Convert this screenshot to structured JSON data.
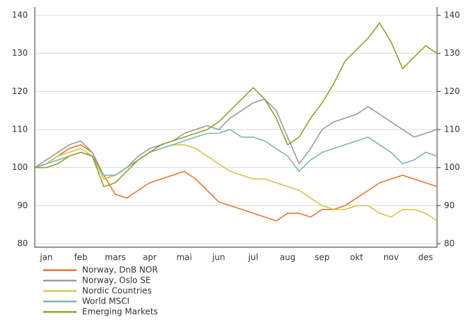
{
  "chart_data": {
    "type": "line",
    "categories": [
      null,
      "jan",
      null,
      null,
      "feb",
      null,
      null,
      "mars",
      null,
      null,
      "apr",
      null,
      null,
      "mai",
      null,
      null,
      "jun",
      null,
      null,
      "jul",
      null,
      null,
      "aug",
      null,
      null,
      "sep",
      null,
      null,
      "okt",
      null,
      null,
      "nov",
      null,
      null,
      "des",
      null
    ],
    "series": [
      {
        "name": "Norway, DnB NOR",
        "color": "#e8762c",
        "values": [
          100,
          101,
          103,
          105,
          106,
          104,
          98,
          93,
          92,
          94,
          96,
          97,
          98,
          99,
          97,
          94,
          91,
          90,
          89,
          88,
          87,
          86,
          88,
          88,
          87,
          89,
          89,
          90,
          92,
          94,
          96,
          97,
          98,
          97,
          96,
          95
        ]
      },
      {
        "name": "Norway, Oslo SE",
        "color": "#9a9a9a",
        "values": [
          100,
          102,
          104,
          106,
          107,
          104,
          97,
          98,
          100,
          103,
          105,
          106,
          107,
          109,
          110,
          111,
          110,
          113,
          115,
          117,
          118,
          115,
          108,
          101,
          105,
          110,
          112,
          113,
          114,
          116,
          114,
          112,
          110,
          108,
          109,
          110
        ]
      },
      {
        "name": "Nordic Countries",
        "color": "#d4c64a",
        "values": [
          100,
          101,
          103,
          104,
          105,
          103,
          97,
          98,
          100,
          102,
          104,
          105,
          106,
          106,
          105,
          103,
          101,
          99,
          98,
          97,
          97,
          96,
          95,
          94,
          92,
          90,
          89,
          89,
          90,
          90,
          88,
          87,
          89,
          89,
          88,
          86
        ]
      },
      {
        "name": "World MSCI",
        "color": "#7fb3b5",
        "values": [
          100,
          101,
          102,
          103,
          104,
          103,
          98,
          98,
          100,
          102,
          104,
          105,
          106,
          107,
          108,
          109,
          109,
          110,
          108,
          108,
          107,
          105,
          103,
          99,
          102,
          104,
          105,
          106,
          107,
          108,
          106,
          104,
          101,
          102,
          104,
          103
        ]
      },
      {
        "name": "Emerging Markets",
        "color": "#8aa32a",
        "values": [
          100,
          100,
          101,
          103,
          104,
          103,
          95,
          96,
          99,
          102,
          104,
          106,
          107,
          108,
          109,
          110,
          112,
          115,
          118,
          121,
          118,
          113,
          106,
          108,
          113,
          117,
          122,
          128,
          131,
          134,
          138,
          133,
          126,
          129,
          132,
          130
        ]
      }
    ],
    "ylim": [
      80,
      140
    ],
    "yticks": [
      80,
      90,
      100,
      110,
      120,
      130,
      140
    ],
    "y2lim": [
      80,
      140
    ],
    "y2ticks": [
      80,
      90,
      100,
      110,
      120,
      130,
      140
    ],
    "grid": true,
    "legend": "below"
  }
}
